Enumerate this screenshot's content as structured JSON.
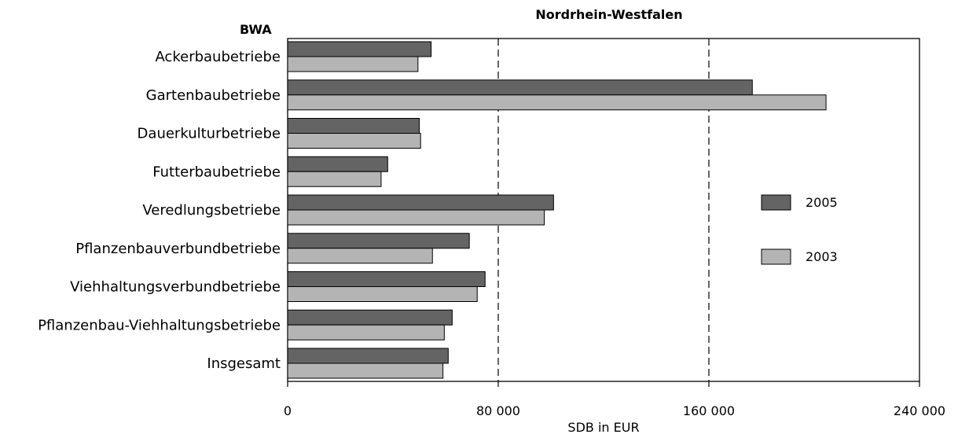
{
  "chart_data": {
    "type": "bar",
    "orientation": "horizontal",
    "title": "Nordrhein-Westfalen",
    "category_axis_label": "BWA",
    "xlabel": "SDB in EUR",
    "xlim": [
      0,
      240000
    ],
    "xticks": [
      0,
      80000,
      160000,
      240000
    ],
    "xtick_labels": [
      "0",
      "80 000",
      "160 000",
      "240 000"
    ],
    "grid": "vertical dashed at 80 000 and 160 000",
    "legend_position": "right",
    "categories": [
      "Ackerbaubetriebe",
      "Gartenbaubetriebe",
      "Dauerkulturbetriebe",
      "Futterbaubetriebe",
      "Veredlungsbetriebe",
      "Pflanzenbauverbundbetriebe",
      "Viehhaltungsverbundbetriebe",
      "Pflanzenbau-Viehhaltungsbetriebe",
      "Insgesamt"
    ],
    "series": [
      {
        "name": "2005",
        "color": "#646464",
        "values": [
          54500,
          176500,
          50000,
          38000,
          101000,
          69000,
          75000,
          62500,
          61000
        ]
      },
      {
        "name": "2003",
        "color": "#b4b4b4",
        "values": [
          49500,
          204500,
          50500,
          35500,
          97500,
          55000,
          72000,
          59500,
          59000
        ]
      }
    ]
  }
}
